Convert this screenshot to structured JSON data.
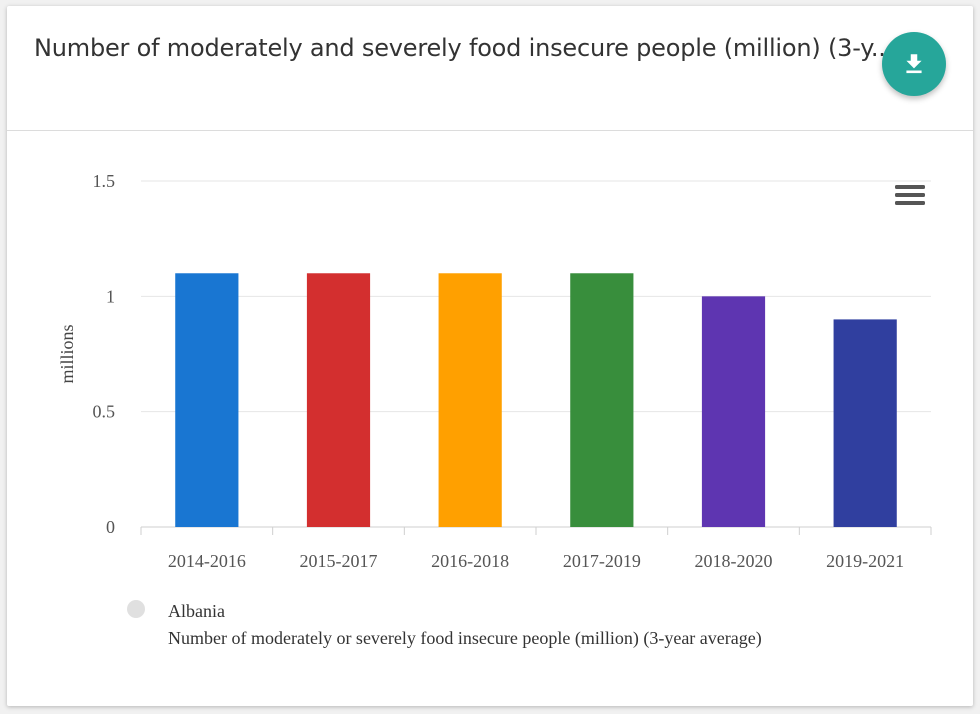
{
  "card": {
    "title": "Number of moderately and severely food insecure people (million) (3-y...",
    "download_icon": "download-icon",
    "menu_icon": "hamburger-menu-icon"
  },
  "colors": {
    "accent": "#26a69a",
    "bars": [
      "#1976d2",
      "#d32f2f",
      "#ffa000",
      "#388e3c",
      "#5e35b1",
      "#303f9f"
    ]
  },
  "chart_data": {
    "type": "bar",
    "title": "",
    "categories": [
      "2014-2016",
      "2015-2017",
      "2016-2018",
      "2017-2019",
      "2018-2020",
      "2019-2021"
    ],
    "values": [
      1.1,
      1.1,
      1.1,
      1.1,
      1.0,
      0.9
    ],
    "xlabel": "",
    "ylabel": "millions",
    "ylim": [
      0,
      1.5
    ],
    "yticks": [
      0,
      0.5,
      1,
      1.5
    ],
    "ytick_labels": [
      "0",
      "0.5",
      "1",
      "1.5"
    ],
    "grid": true,
    "legend": {
      "placement": "bottom-left",
      "series_name": "Albania",
      "series_description": "Number of moderately or severely food insecure people (million) (3-year average)"
    }
  }
}
